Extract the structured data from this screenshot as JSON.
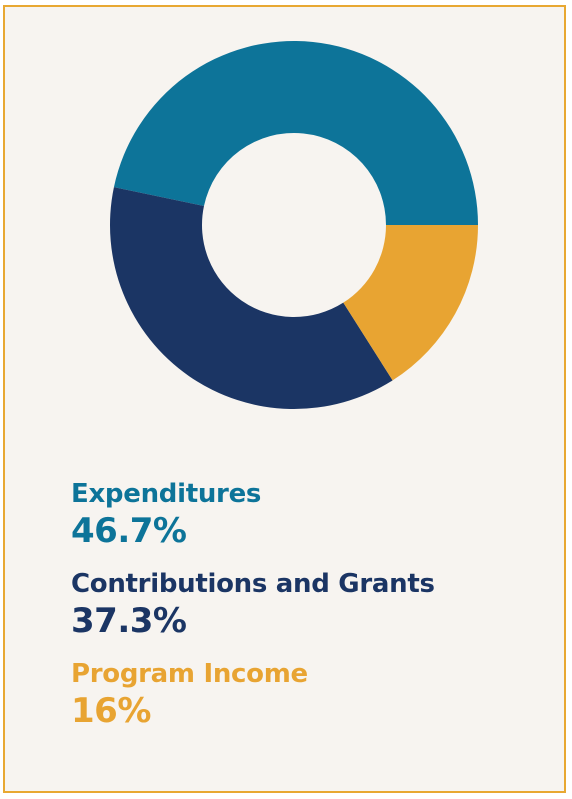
{
  "chart_data": {
    "type": "pie",
    "donut": true,
    "categories": [
      "Expenditures",
      "Contributions and Grants",
      "Program Income"
    ],
    "values": [
      46.7,
      37.3,
      16
    ],
    "value_labels": [
      "46.7%",
      "37.3%",
      "16%"
    ],
    "colors": [
      "#0d7499",
      "#1b3564",
      "#e8a432"
    ]
  },
  "colors": {
    "border": "#e8a832",
    "background": "#f7f4f0"
  }
}
